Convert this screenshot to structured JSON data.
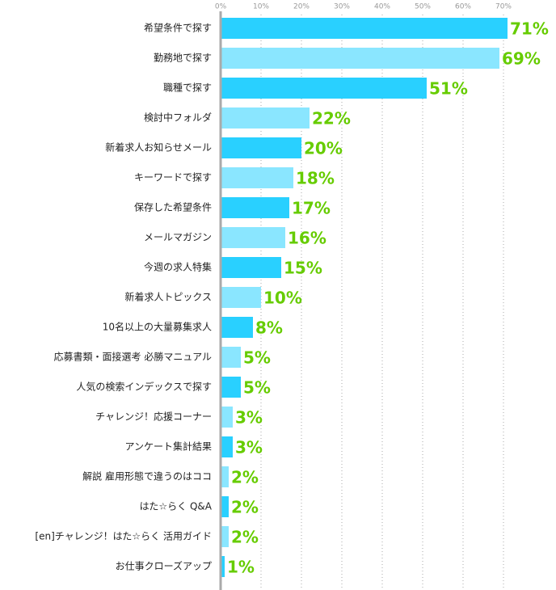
{
  "chart_data": {
    "type": "bar",
    "orientation": "horizontal",
    "categories": [
      "希望条件で探す",
      "勤務地で探す",
      "職種で探す",
      "検討中フォルダ",
      "新着求人お知らせメール",
      "キーワードで探す",
      "保存した希望条件",
      "メールマガジン",
      "今週の求人特集",
      "新着求人トピックス",
      "10名以上の大量募集求人",
      "応募書類・面接選考 必勝マニュアル",
      "人気の検索インデックスで探す",
      "チャレンジ！応援コーナー",
      "アンケート集計結果",
      "解説 雇用形態で違うのはココ",
      "はた☆らく Q&A",
      "[en]チャレンジ！はた☆らく 活用ガイド",
      "お仕事クローズアップ"
    ],
    "values": [
      71,
      69,
      51,
      22,
      20,
      18,
      17,
      16,
      15,
      10,
      8,
      5,
      5,
      3,
      3,
      2,
      2,
      2,
      1
    ],
    "value_labels": [
      "71%",
      "69%",
      "51%",
      "22%",
      "20%",
      "18%",
      "17%",
      "16%",
      "15%",
      "10%",
      "8%",
      "5%",
      "5%",
      "3%",
      "3%",
      "2%",
      "2%",
      "2%",
      "1%"
    ],
    "colors": [
      "#29d0ff",
      "#8ae6ff"
    ],
    "label_color": "#66cc00",
    "xlim": [
      0,
      80
    ],
    "xticks": [
      {
        "value": 0,
        "label": "0%"
      },
      {
        "value": 10,
        "label": "10%"
      },
      {
        "value": 20,
        "label": "20%"
      },
      {
        "value": 30,
        "label": "30%"
      },
      {
        "value": 40,
        "label": "40%"
      },
      {
        "value": 50,
        "label": "50%"
      },
      {
        "value": 60,
        "label": "60%"
      },
      {
        "value": 70,
        "label": "70%"
      }
    ],
    "grid": true
  }
}
